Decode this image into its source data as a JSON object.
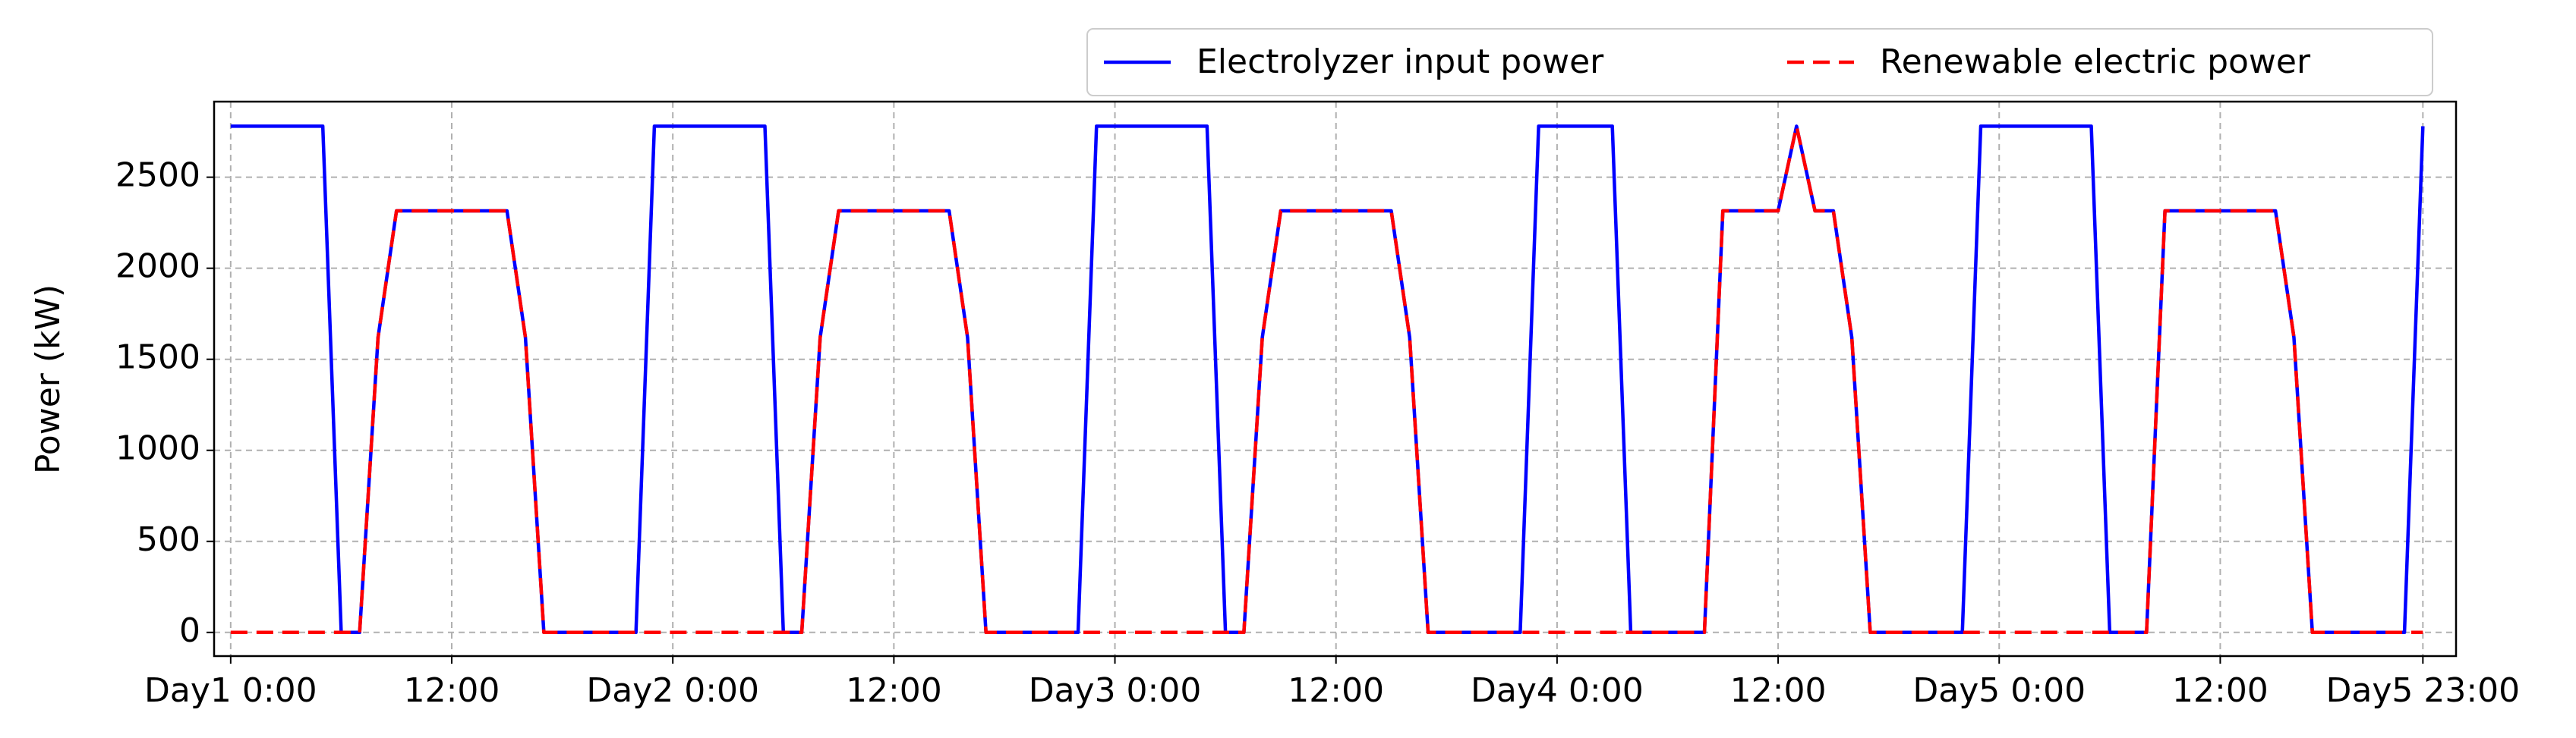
{
  "chart_data": {
    "type": "line",
    "y_label": "Power (kW)",
    "x": [
      0,
      1,
      2,
      3,
      4,
      5,
      6,
      7,
      8,
      9,
      10,
      11,
      12,
      13,
      14,
      15,
      16,
      17,
      18,
      19,
      20,
      21,
      22,
      23,
      24,
      25,
      26,
      27,
      28,
      29,
      30,
      31,
      32,
      33,
      34,
      35,
      36,
      37,
      38,
      39,
      40,
      41,
      42,
      43,
      44,
      45,
      46,
      47,
      48,
      49,
      50,
      51,
      52,
      53,
      54,
      55,
      56,
      57,
      58,
      59,
      60,
      61,
      62,
      63,
      64,
      65,
      66,
      67,
      68,
      69,
      70,
      71,
      72,
      73,
      74,
      75,
      76,
      77,
      78,
      79,
      80,
      81,
      82,
      83,
      84,
      85,
      86,
      87,
      88,
      89,
      90,
      91,
      92,
      93,
      94,
      95,
      96,
      97,
      98,
      99,
      100,
      101,
      102,
      103,
      104,
      105,
      106,
      107,
      108,
      109,
      110,
      111,
      112,
      113,
      114,
      115,
      116,
      117,
      118,
      119
    ],
    "series": [
      {
        "name": "Electrolyzer input power",
        "color": "#0000ff",
        "linestyle": "solid",
        "values": [
          2780,
          2780,
          2780,
          2780,
          2780,
          2780,
          0,
          0,
          1620,
          2315,
          2315,
          2315,
          2315,
          2315,
          2315,
          2315,
          1620,
          0,
          0,
          0,
          0,
          0,
          0,
          2780,
          2780,
          2780,
          2780,
          2780,
          2780,
          2780,
          0,
          0,
          1620,
          2315,
          2315,
          2315,
          2315,
          2315,
          2315,
          2315,
          1620,
          0,
          0,
          0,
          0,
          0,
          0,
          2780,
          2780,
          2780,
          2780,
          2780,
          2780,
          2780,
          0,
          0,
          1620,
          2315,
          2315,
          2315,
          2315,
          2315,
          2315,
          2315,
          1620,
          0,
          0,
          0,
          0,
          0,
          0,
          2780,
          2780,
          2780,
          2780,
          2780,
          0,
          0,
          0,
          0,
          0,
          2315,
          2315,
          2315,
          2315,
          2780,
          2315,
          2315,
          1620,
          0,
          0,
          0,
          0,
          0,
          0,
          2780,
          2780,
          2780,
          2780,
          2780,
          2780,
          2780,
          0,
          0,
          0,
          2315,
          2315,
          2315,
          2315,
          2315,
          2315,
          2315,
          1620,
          0,
          0,
          0,
          0,
          0,
          0,
          2780
        ]
      },
      {
        "name": "Renewable electric power",
        "color": "#ff0000",
        "linestyle": "dashed",
        "values": [
          0,
          0,
          0,
          0,
          0,
          0,
          0,
          0,
          1620,
          2315,
          2315,
          2315,
          2315,
          2315,
          2315,
          2315,
          1620,
          0,
          0,
          0,
          0,
          0,
          0,
          0,
          0,
          0,
          0,
          0,
          0,
          0,
          0,
          0,
          1620,
          2315,
          2315,
          2315,
          2315,
          2315,
          2315,
          2315,
          1620,
          0,
          0,
          0,
          0,
          0,
          0,
          0,
          0,
          0,
          0,
          0,
          0,
          0,
          0,
          0,
          1620,
          2315,
          2315,
          2315,
          2315,
          2315,
          2315,
          2315,
          1620,
          0,
          0,
          0,
          0,
          0,
          0,
          0,
          0,
          0,
          0,
          0,
          0,
          0,
          0,
          0,
          0,
          2315,
          2315,
          2315,
          2315,
          2780,
          2315,
          2315,
          1620,
          0,
          0,
          0,
          0,
          0,
          0,
          0,
          0,
          0,
          0,
          0,
          0,
          0,
          0,
          0,
          0,
          2315,
          2315,
          2315,
          2315,
          2315,
          2315,
          2315,
          1620,
          0,
          0,
          0,
          0,
          0,
          0,
          0
        ]
      }
    ],
    "xlim": [
      -0.9,
      120.8
    ],
    "ylim": [
      -130,
      2915
    ],
    "xticks": [
      {
        "value": 0,
        "label": "Day1 0:00"
      },
      {
        "value": 12,
        "label": "12:00"
      },
      {
        "value": 24,
        "label": "Day2 0:00"
      },
      {
        "value": 36,
        "label": "12:00"
      },
      {
        "value": 48,
        "label": "Day3 0:00"
      },
      {
        "value": 60,
        "label": "12:00"
      },
      {
        "value": 72,
        "label": "Day4 0:00"
      },
      {
        "value": 84,
        "label": "12:00"
      },
      {
        "value": 96,
        "label": "Day5 0:00"
      },
      {
        "value": 108,
        "label": "12:00"
      },
      {
        "value": 119,
        "label": "Day5 23:00"
      }
    ],
    "yticks": [
      0,
      500,
      1000,
      1500,
      2000,
      2500
    ],
    "grid": true,
    "legend": "upper right"
  }
}
